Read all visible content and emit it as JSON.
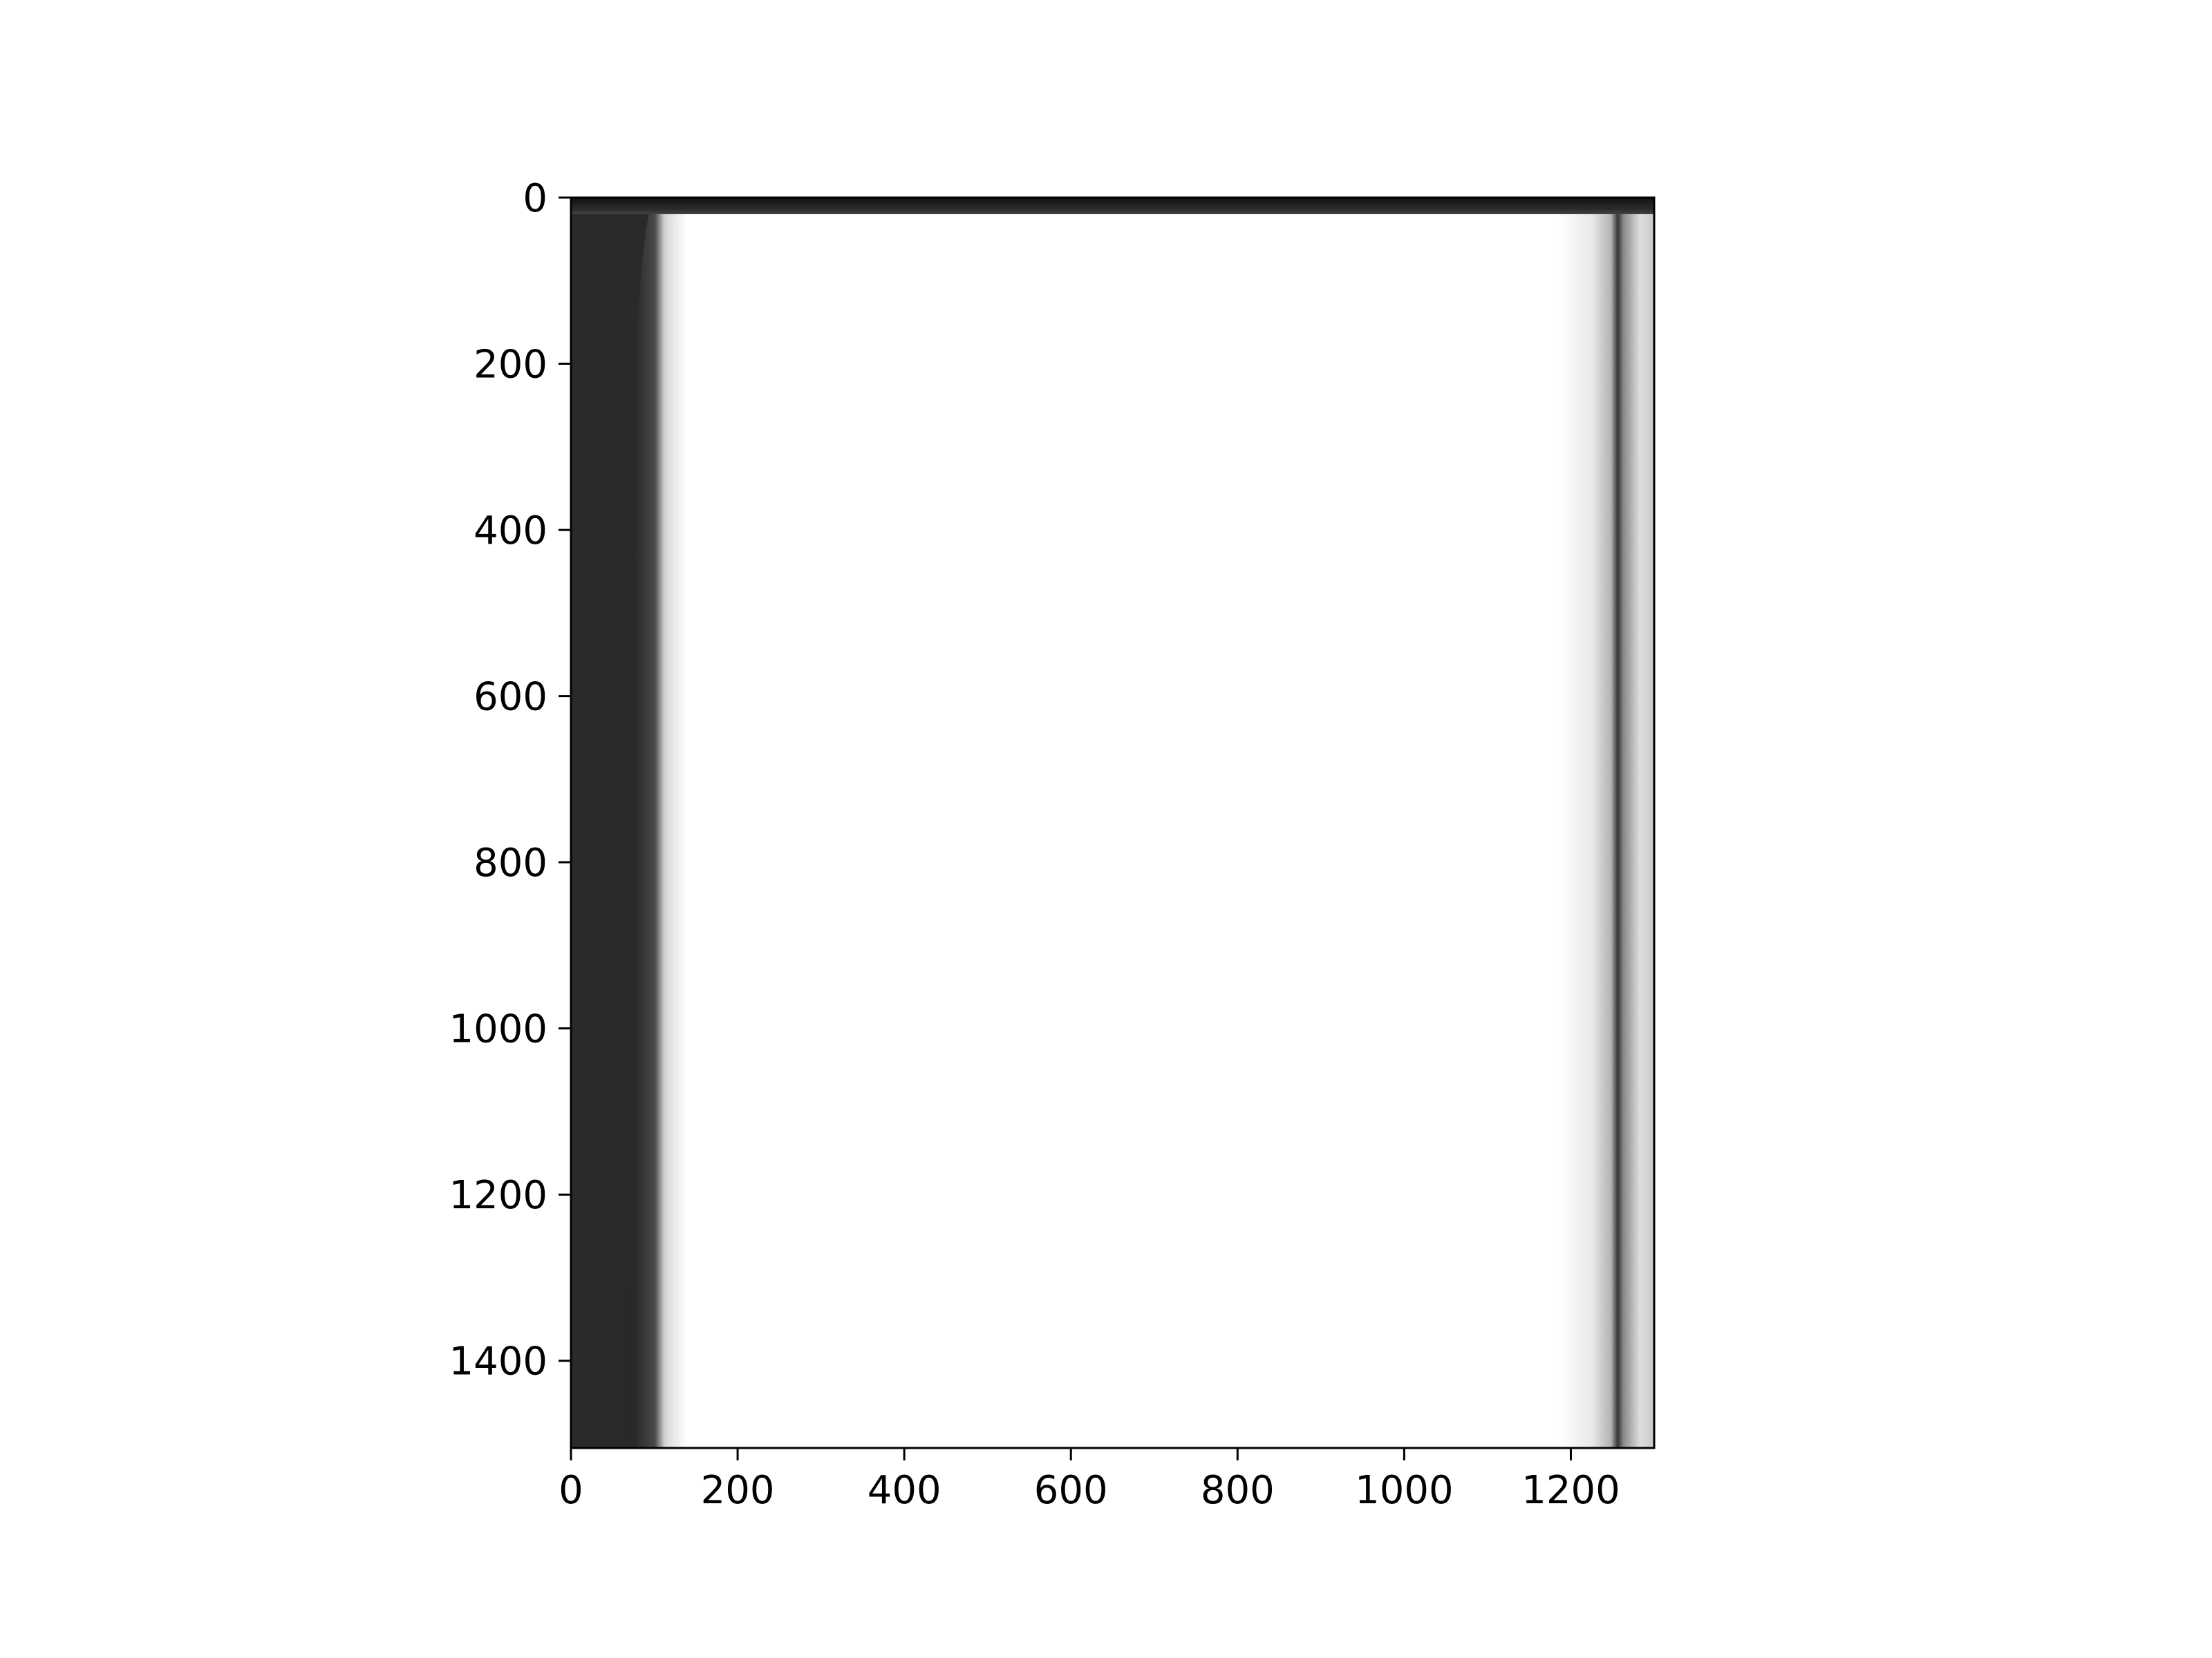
{
  "chart_data": {
    "type": "heatmap",
    "title": "",
    "xlabel": "",
    "ylabel": "",
    "xlim": [
      0,
      1300
    ],
    "ylim": [
      1505,
      0
    ],
    "xticks": [
      0,
      200,
      400,
      600,
      800,
      1000,
      1200
    ],
    "yticks": [
      0,
      200,
      400,
      600,
      800,
      1000,
      1200,
      1400
    ],
    "colormap": "gray",
    "grid": false,
    "image_description_values": {
      "left_dark_band_x": [
        0,
        65
      ],
      "top_dark_band_y": [
        0,
        20
      ],
      "right_shadow_x": [
        1240,
        1300
      ]
    }
  }
}
